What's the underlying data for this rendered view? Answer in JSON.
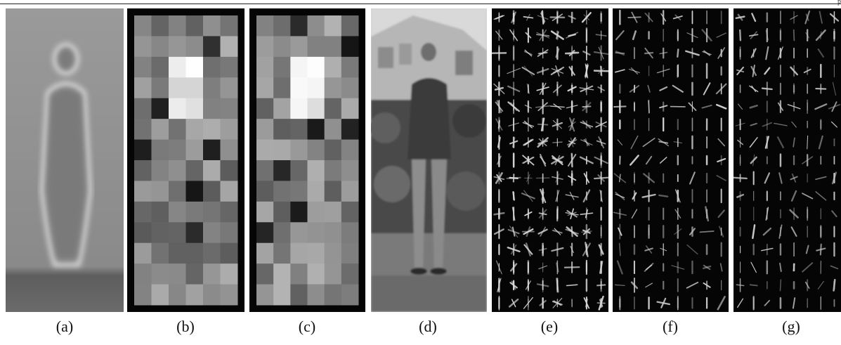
{
  "header": {
    "fragment": "p"
  },
  "panels": [
    {
      "id": "a",
      "label": "(a)",
      "kind": "mean-gradient"
    },
    {
      "id": "b",
      "label": "(b)",
      "kind": "block-weights"
    },
    {
      "id": "c",
      "label": "(c)",
      "kind": "block-weights"
    },
    {
      "id": "d",
      "label": "(d)",
      "kind": "photo"
    },
    {
      "id": "e",
      "label": "(e)",
      "kind": "hog-glyphs"
    },
    {
      "id": "f",
      "label": "(f)",
      "kind": "hog-glyphs"
    },
    {
      "id": "g",
      "label": "(g)",
      "kind": "hog-glyphs"
    }
  ],
  "colors": {
    "background": "#ffffff",
    "text": "#111111",
    "panel_dark": "#050505"
  }
}
